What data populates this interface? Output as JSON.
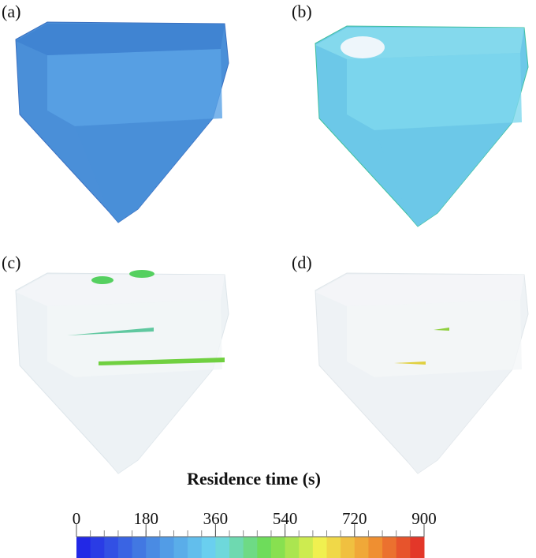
{
  "panels": [
    {
      "label": "(a)"
    },
    {
      "label": "(b)"
    },
    {
      "label": "(c)"
    },
    {
      "label": "(d)"
    }
  ],
  "colorbar": {
    "title": "Residence time (s)",
    "lim": [
      0,
      900
    ],
    "ticks": [
      0,
      180,
      360,
      540,
      720,
      900
    ]
  }
}
